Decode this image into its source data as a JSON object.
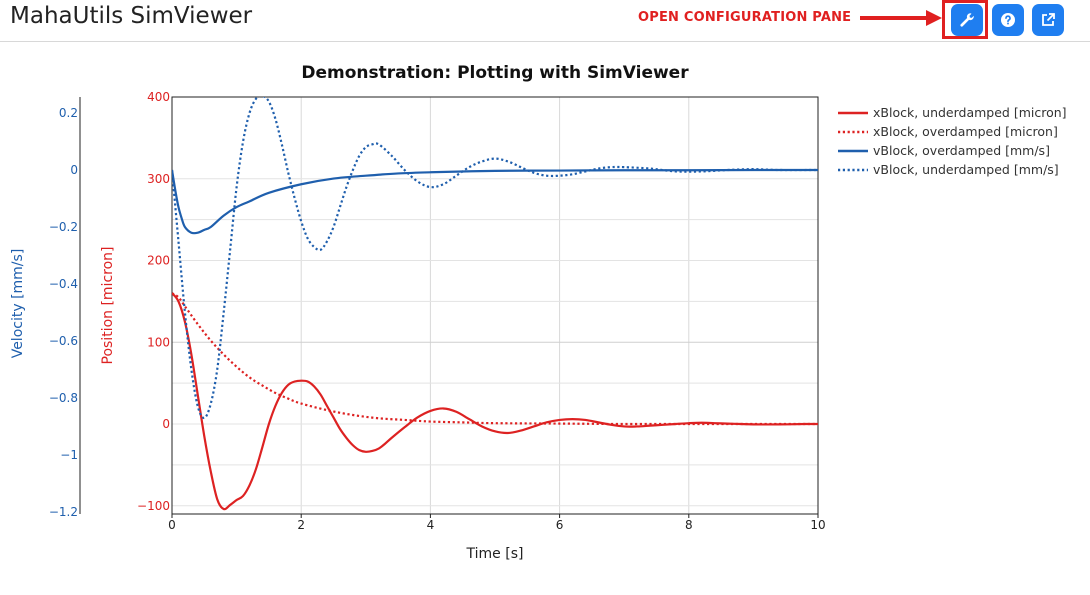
{
  "header": {
    "app_title": "MahaUtils SimViewer",
    "callout_text": "OPEN CONFIGURATION PANE",
    "callout_color": "#e02020",
    "buttons": [
      {
        "name": "configure-button",
        "icon": "wrench-icon"
      },
      {
        "name": "help-button",
        "icon": "question-circle-icon"
      },
      {
        "name": "open-external-button",
        "icon": "external-link-icon"
      }
    ],
    "button_color": "#1f7ef0"
  },
  "chart_data": {
    "type": "line",
    "title": "Demonstration: Plotting with SimViewer",
    "xlabel": "Time [s]",
    "xlim": [
      0,
      10
    ],
    "x_ticks": [
      0,
      2,
      4,
      6,
      8,
      10
    ],
    "y_left_outer": {
      "label": "Velocity [mm/s]",
      "color": "#1f5fad",
      "range": [
        -1.2,
        0.25
      ],
      "ticks": [
        0.2,
        0,
        -0.2,
        -0.4,
        -0.6,
        -0.8,
        -1,
        -1.2
      ],
      "tick_labels": [
        "0.2",
        "0",
        "−0.2",
        "−0.4",
        "−0.6",
        "−0.8",
        "−1",
        "−1.2"
      ]
    },
    "y_left_inner": {
      "label": "Position [micron]",
      "color": "#dd2222",
      "range": [
        -110,
        400
      ],
      "ticks": [
        400,
        300,
        200,
        100,
        0,
        -100
      ],
      "tick_labels": [
        "400",
        "300",
        "200",
        "100",
        "0",
        "−100"
      ]
    },
    "grid": true,
    "legend_placement": "right",
    "series": [
      {
        "name": "xBlock, underdamped [micron]",
        "axis": "position",
        "color": "#dd2222",
        "dash": "solid",
        "x": [
          0,
          0.1,
          0.2,
          0.3,
          0.4,
          0.5,
          0.6,
          0.7,
          0.8,
          0.9,
          1.0,
          1.1,
          1.2,
          1.3,
          1.4,
          1.5,
          1.6,
          1.7,
          1.8,
          1.9,
          2.0,
          2.1,
          2.2,
          2.3,
          2.4,
          2.5,
          2.6,
          2.7,
          2.8,
          2.9,
          3.0,
          3.1,
          3.2,
          3.3,
          3.4,
          3.6,
          3.8,
          4.0,
          4.2,
          4.4,
          4.6,
          4.8,
          5.0,
          5.2,
          5.4,
          5.6,
          5.8,
          6.0,
          6.2,
          6.4,
          6.6,
          6.8,
          7.0,
          7.2,
          7.4,
          7.6,
          7.8,
          8.0,
          8.2,
          8.4,
          8.6,
          8.8,
          9.0,
          9.4,
          9.8,
          10
        ],
        "y": [
          160,
          150,
          125,
          85,
          35,
          -15,
          -58,
          -92,
          -104,
          -99,
          -93,
          -88,
          -75,
          -55,
          -28,
          0,
          22,
          38,
          48,
          52,
          53,
          52,
          46,
          36,
          22,
          8,
          -6,
          -17,
          -26,
          -32,
          -34,
          -33,
          -30,
          -24,
          -17,
          -4,
          8,
          16,
          19,
          15,
          6,
          -3,
          -9,
          -11,
          -8,
          -3,
          2,
          5,
          6,
          5,
          2,
          -1,
          -3,
          -3,
          -2,
          -1,
          0,
          1,
          1.5,
          1,
          0.5,
          0,
          -0.5,
          -0.5,
          0,
          0
        ]
      },
      {
        "name": "xBlock, overdamped [micron]",
        "axis": "position",
        "color": "#dd2222",
        "dash": "dotted",
        "x": [
          0,
          0.1,
          0.2,
          0.4,
          0.6,
          0.8,
          1.0,
          1.2,
          1.4,
          1.6,
          1.8,
          2.0,
          2.4,
          2.8,
          3.2,
          3.6,
          4.0,
          4.5,
          5.0,
          6.0,
          7.0,
          8.0,
          9.0,
          10
        ],
        "y": [
          160,
          155,
          144,
          122,
          102,
          85,
          70,
          57,
          47,
          38,
          31,
          25,
          17,
          11,
          7,
          5,
          3,
          2,
          1,
          0.5,
          0,
          0,
          0,
          0
        ]
      },
      {
        "name": "vBlock, overdamped [mm/s]",
        "axis": "velocity",
        "color": "#1f5fad",
        "dash": "solid",
        "x": [
          0,
          0.05,
          0.1,
          0.15,
          0.2,
          0.3,
          0.4,
          0.5,
          0.6,
          0.8,
          1.0,
          1.2,
          1.5,
          2.0,
          2.5,
          3.0,
          3.5,
          4.0,
          5.0,
          6.0,
          7.0,
          8.0,
          9.0,
          10
        ],
        "y": [
          0,
          -0.07,
          -0.13,
          -0.17,
          -0.2,
          -0.22,
          -0.22,
          -0.21,
          -0.2,
          -0.16,
          -0.13,
          -0.11,
          -0.08,
          -0.05,
          -0.03,
          -0.02,
          -0.012,
          -0.008,
          -0.003,
          -0.002,
          -0.001,
          -0.001,
          0,
          0
        ]
      },
      {
        "name": "vBlock, underdamped [mm/s]",
        "axis": "velocity",
        "color": "#1f5fad",
        "dash": "dotted",
        "x": [
          0,
          0.1,
          0.2,
          0.3,
          0.4,
          0.5,
          0.6,
          0.7,
          0.8,
          0.9,
          1.0,
          1.1,
          1.2,
          1.3,
          1.4,
          1.5,
          1.6,
          1.7,
          1.8,
          1.9,
          2.0,
          2.1,
          2.2,
          2.3,
          2.4,
          2.5,
          2.6,
          2.7,
          2.8,
          2.9,
          3.0,
          3.1,
          3.2,
          3.4,
          3.6,
          3.8,
          4.0,
          4.2,
          4.4,
          4.6,
          4.8,
          5.0,
          5.2,
          5.4,
          5.6,
          5.8,
          6.0,
          6.2,
          6.4,
          6.6,
          6.8,
          7.0,
          7.4,
          7.8,
          8.2,
          8.6,
          9.0,
          9.4,
          10
        ],
        "y": [
          0,
          -0.25,
          -0.5,
          -0.7,
          -0.83,
          -0.87,
          -0.82,
          -0.7,
          -0.5,
          -0.28,
          -0.06,
          0.1,
          0.2,
          0.25,
          0.26,
          0.24,
          0.18,
          0.09,
          -0.01,
          -0.1,
          -0.18,
          -0.24,
          -0.27,
          -0.28,
          -0.25,
          -0.2,
          -0.13,
          -0.06,
          0.0,
          0.05,
          0.08,
          0.09,
          0.09,
          0.05,
          0.0,
          -0.04,
          -0.06,
          -0.05,
          -0.02,
          0.01,
          0.03,
          0.04,
          0.03,
          0.01,
          -0.01,
          -0.02,
          -0.02,
          -0.015,
          -0.005,
          0.005,
          0.01,
          0.01,
          0.005,
          -0.005,
          -0.005,
          0.0,
          0.003,
          0.0,
          0.0
        ]
      }
    ]
  }
}
